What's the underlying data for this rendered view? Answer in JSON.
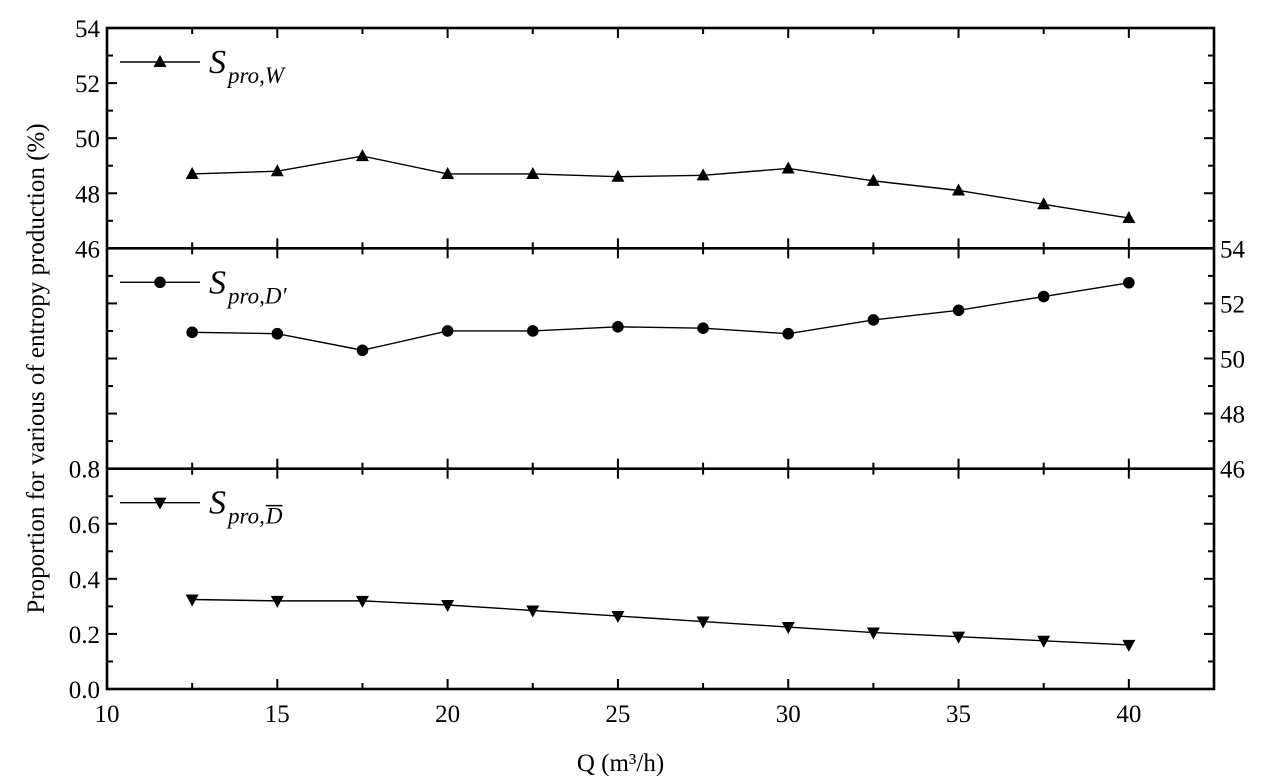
{
  "chart_data": {
    "type": "line",
    "xlabel": "Q (m³/h)",
    "xlim": [
      10,
      42.5
    ],
    "xticks": [
      10,
      15,
      20,
      25,
      30,
      35,
      40
    ],
    "ylabel": "Proportion for various of entropy production (%)",
    "x": [
      12.5,
      15,
      17.5,
      20,
      22.5,
      25,
      27.5,
      30,
      32.5,
      35,
      37.5,
      40
    ],
    "panels": [
      {
        "ylim": [
          46,
          54
        ],
        "yticks": [
          46,
          48,
          50,
          52,
          54
        ],
        "y_axis_side": "left",
        "series": [
          {
            "name": "S_pro,W",
            "legend_main": "S",
            "legend_sub": "pro,W",
            "marker": "triangle-up",
            "values": [
              48.7,
              48.8,
              49.35,
              48.7,
              48.7,
              48.6,
              48.65,
              48.9,
              48.45,
              48.1,
              47.6,
              47.1
            ]
          }
        ]
      },
      {
        "ylim": [
          46,
          54
        ],
        "yticks": [
          46,
          48,
          50,
          52,
          54
        ],
        "y_axis_side": "right",
        "series": [
          {
            "name": "S_pro,D'",
            "legend_main": "S",
            "legend_sub": "pro,D′",
            "marker": "circle",
            "values": [
              50.95,
              50.9,
              50.3,
              51.0,
              51.0,
              51.15,
              51.1,
              50.9,
              51.4,
              51.75,
              52.25,
              52.75
            ]
          }
        ]
      },
      {
        "ylim": [
          0.0,
          0.8
        ],
        "yticks": [
          0.0,
          0.2,
          0.4,
          0.6,
          0.8
        ],
        "y_axis_side": "left",
        "series": [
          {
            "name": "S_pro,D̄",
            "legend_main": "S",
            "legend_sub": "pro,",
            "legend_sub_overlined": "D",
            "marker": "triangle-down",
            "values": [
              0.325,
              0.32,
              0.32,
              0.305,
              0.285,
              0.265,
              0.245,
              0.225,
              0.205,
              0.19,
              0.175,
              0.16
            ]
          }
        ]
      }
    ]
  }
}
